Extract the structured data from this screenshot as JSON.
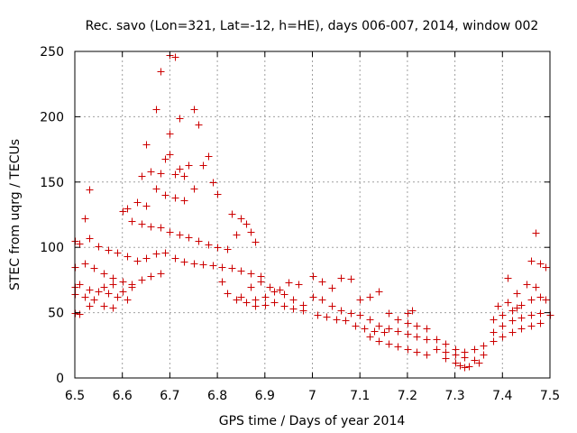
{
  "chart_data": {
    "type": "scatter",
    "title": "Rec. savo (Lon=321, Lat=-12, h=HE), days 006-007, 2014, window 002",
    "xlabel": "GPS time / Days of year 2014",
    "ylabel": "STEC from uqrg / TECUs",
    "xlim": [
      6.5,
      7.5
    ],
    "ylim": [
      0,
      250
    ],
    "xticks": [
      6.5,
      6.6,
      6.7,
      6.8,
      6.9,
      7.0,
      7.1,
      7.2,
      7.3,
      7.4,
      7.5
    ],
    "xtick_labels": [
      "6.5",
      "6.6",
      "6.7",
      "6.8",
      "6.9",
      "7",
      "7.1",
      "7.2",
      "7.3",
      "7.4",
      "7.5"
    ],
    "yticks": [
      0,
      50,
      100,
      150,
      200,
      250
    ],
    "ytick_labels": [
      "0",
      "50",
      "100",
      "150",
      "200",
      "250"
    ],
    "grid": true,
    "marker": "+",
    "marker_color": "#cc0000",
    "series": [
      {
        "name": "STEC",
        "points": [
          [
            6.7,
            247
          ],
          [
            6.71,
            246
          ],
          [
            6.68,
            235
          ],
          [
            6.67,
            206
          ],
          [
            6.75,
            206
          ],
          [
            6.72,
            199
          ],
          [
            6.76,
            194
          ],
          [
            6.7,
            187
          ],
          [
            6.65,
            179
          ],
          [
            6.78,
            170
          ],
          [
            6.69,
            168
          ],
          [
            6.7,
            171
          ],
          [
            6.72,
            160
          ],
          [
            6.74,
            163
          ],
          [
            6.77,
            163
          ],
          [
            6.66,
            158
          ],
          [
            6.68,
            157
          ],
          [
            6.71,
            156
          ],
          [
            6.73,
            155
          ],
          [
            6.64,
            155
          ],
          [
            6.79,
            150
          ],
          [
            6.8,
            141
          ],
          [
            6.75,
            145
          ],
          [
            6.67,
            145
          ],
          [
            6.69,
            140
          ],
          [
            6.71,
            138
          ],
          [
            6.73,
            136
          ],
          [
            6.63,
            135
          ],
          [
            6.65,
            132
          ],
          [
            6.61,
            130
          ],
          [
            6.6,
            128
          ],
          [
            6.53,
            144
          ],
          [
            6.62,
            120
          ],
          [
            6.64,
            118
          ],
          [
            6.66,
            116
          ],
          [
            6.68,
            115
          ],
          [
            6.7,
            112
          ],
          [
            6.72,
            110
          ],
          [
            6.74,
            108
          ],
          [
            6.76,
            105
          ],
          [
            6.78,
            102
          ],
          [
            6.8,
            100
          ],
          [
            6.82,
            99
          ],
          [
            6.84,
            110
          ],
          [
            6.86,
            118
          ],
          [
            6.83,
            126
          ],
          [
            6.85,
            122
          ],
          [
            6.87,
            112
          ],
          [
            6.88,
            104
          ],
          [
            6.52,
            122
          ],
          [
            6.5,
            105
          ],
          [
            6.51,
            103
          ],
          [
            6.53,
            107
          ],
          [
            6.55,
            101
          ],
          [
            6.57,
            98
          ],
          [
            6.59,
            96
          ],
          [
            6.61,
            93
          ],
          [
            6.63,
            90
          ],
          [
            6.65,
            92
          ],
          [
            6.67,
            95
          ],
          [
            6.69,
            96
          ],
          [
            6.71,
            92
          ],
          [
            6.73,
            89
          ],
          [
            6.75,
            88
          ],
          [
            6.77,
            87
          ],
          [
            6.79,
            86
          ],
          [
            6.81,
            85
          ],
          [
            6.83,
            84
          ],
          [
            6.85,
            82
          ],
          [
            6.87,
            80
          ],
          [
            6.89,
            78
          ],
          [
            6.5,
            85
          ],
          [
            6.52,
            88
          ],
          [
            6.54,
            84
          ],
          [
            6.56,
            80
          ],
          [
            6.58,
            77
          ],
          [
            6.6,
            74
          ],
          [
            6.62,
            72
          ],
          [
            6.64,
            75
          ],
          [
            6.66,
            78
          ],
          [
            6.68,
            80
          ],
          [
            6.5,
            70
          ],
          [
            6.51,
            72
          ],
          [
            6.53,
            68
          ],
          [
            6.55,
            66
          ],
          [
            6.57,
            65
          ],
          [
            6.59,
            62
          ],
          [
            6.61,
            60
          ],
          [
            6.5,
            50
          ],
          [
            6.51,
            49
          ],
          [
            6.53,
            55
          ],
          [
            6.56,
            55
          ],
          [
            6.58,
            54
          ],
          [
            6.5,
            64
          ],
          [
            6.52,
            62
          ],
          [
            6.54,
            60
          ],
          [
            6.56,
            70
          ],
          [
            6.58,
            72
          ],
          [
            6.6,
            66
          ],
          [
            6.62,
            70
          ],
          [
            6.81,
            74
          ],
          [
            6.82,
            65
          ],
          [
            6.84,
            60
          ],
          [
            6.86,
            58
          ],
          [
            6.88,
            60
          ],
          [
            6.9,
            62
          ],
          [
            6.92,
            66
          ],
          [
            6.94,
            64
          ],
          [
            6.96,
            60
          ],
          [
            6.98,
            56
          ],
          [
            6.85,
            62
          ],
          [
            6.87,
            70
          ],
          [
            6.89,
            74
          ],
          [
            6.91,
            70
          ],
          [
            6.93,
            68
          ],
          [
            6.95,
            73
          ],
          [
            6.97,
            72
          ],
          [
            6.88,
            55
          ],
          [
            6.9,
            56
          ],
          [
            6.92,
            58
          ],
          [
            6.94,
            55
          ],
          [
            6.96,
            53
          ],
          [
            6.98,
            52
          ],
          [
            7.0,
            78
          ],
          [
            7.02,
            74
          ],
          [
            7.04,
            69
          ],
          [
            7.06,
            77
          ],
          [
            7.08,
            76
          ],
          [
            7.0,
            62
          ],
          [
            7.02,
            60
          ],
          [
            7.04,
            55
          ],
          [
            7.06,
            52
          ],
          [
            7.08,
            50
          ],
          [
            7.1,
            48
          ],
          [
            7.12,
            45
          ],
          [
            7.01,
            48
          ],
          [
            7.03,
            47
          ],
          [
            7.05,
            45
          ],
          [
            7.07,
            44
          ],
          [
            7.09,
            40
          ],
          [
            7.11,
            38
          ],
          [
            7.13,
            36
          ],
          [
            7.15,
            35
          ],
          [
            7.1,
            60
          ],
          [
            7.12,
            62
          ],
          [
            7.14,
            66
          ],
          [
            7.16,
            50
          ],
          [
            7.18,
            45
          ],
          [
            7.2,
            42
          ],
          [
            7.14,
            40
          ],
          [
            7.16,
            38
          ],
          [
            7.18,
            36
          ],
          [
            7.2,
            34
          ],
          [
            7.22,
            32
          ],
          [
            7.24,
            30
          ],
          [
            7.12,
            32
          ],
          [
            7.14,
            28
          ],
          [
            7.16,
            26
          ],
          [
            7.18,
            24
          ],
          [
            7.2,
            22
          ],
          [
            7.22,
            20
          ],
          [
            7.24,
            18
          ],
          [
            7.21,
            52
          ],
          [
            7.2,
            50
          ],
          [
            7.22,
            40
          ],
          [
            7.24,
            38
          ],
          [
            7.26,
            30
          ],
          [
            7.28,
            26
          ],
          [
            7.26,
            22
          ],
          [
            7.28,
            20
          ],
          [
            7.3,
            18
          ],
          [
            7.32,
            16
          ],
          [
            7.34,
            14
          ],
          [
            7.36,
            18
          ],
          [
            7.28,
            15
          ],
          [
            7.3,
            12
          ],
          [
            7.31,
            10
          ],
          [
            7.32,
            8
          ],
          [
            7.33,
            9
          ],
          [
            7.35,
            12
          ],
          [
            7.3,
            22
          ],
          [
            7.32,
            20
          ],
          [
            7.34,
            22
          ],
          [
            7.36,
            25
          ],
          [
            7.38,
            28
          ],
          [
            7.4,
            32
          ],
          [
            7.42,
            35
          ],
          [
            7.44,
            38
          ],
          [
            7.46,
            40
          ],
          [
            7.48,
            42
          ],
          [
            7.38,
            35
          ],
          [
            7.4,
            40
          ],
          [
            7.42,
            44
          ],
          [
            7.44,
            46
          ],
          [
            7.46,
            48
          ],
          [
            7.48,
            50
          ],
          [
            7.5,
            48
          ],
          [
            7.38,
            45
          ],
          [
            7.4,
            48
          ],
          [
            7.42,
            52
          ],
          [
            7.44,
            56
          ],
          [
            7.46,
            60
          ],
          [
            7.48,
            62
          ],
          [
            7.41,
            77
          ],
          [
            7.43,
            65
          ],
          [
            7.45,
            72
          ],
          [
            7.47,
            70
          ],
          [
            7.49,
            60
          ],
          [
            7.46,
            90
          ],
          [
            7.48,
            88
          ],
          [
            7.49,
            85
          ],
          [
            7.47,
            111
          ],
          [
            7.39,
            55
          ],
          [
            7.41,
            58
          ],
          [
            7.43,
            54
          ]
        ]
      }
    ]
  }
}
